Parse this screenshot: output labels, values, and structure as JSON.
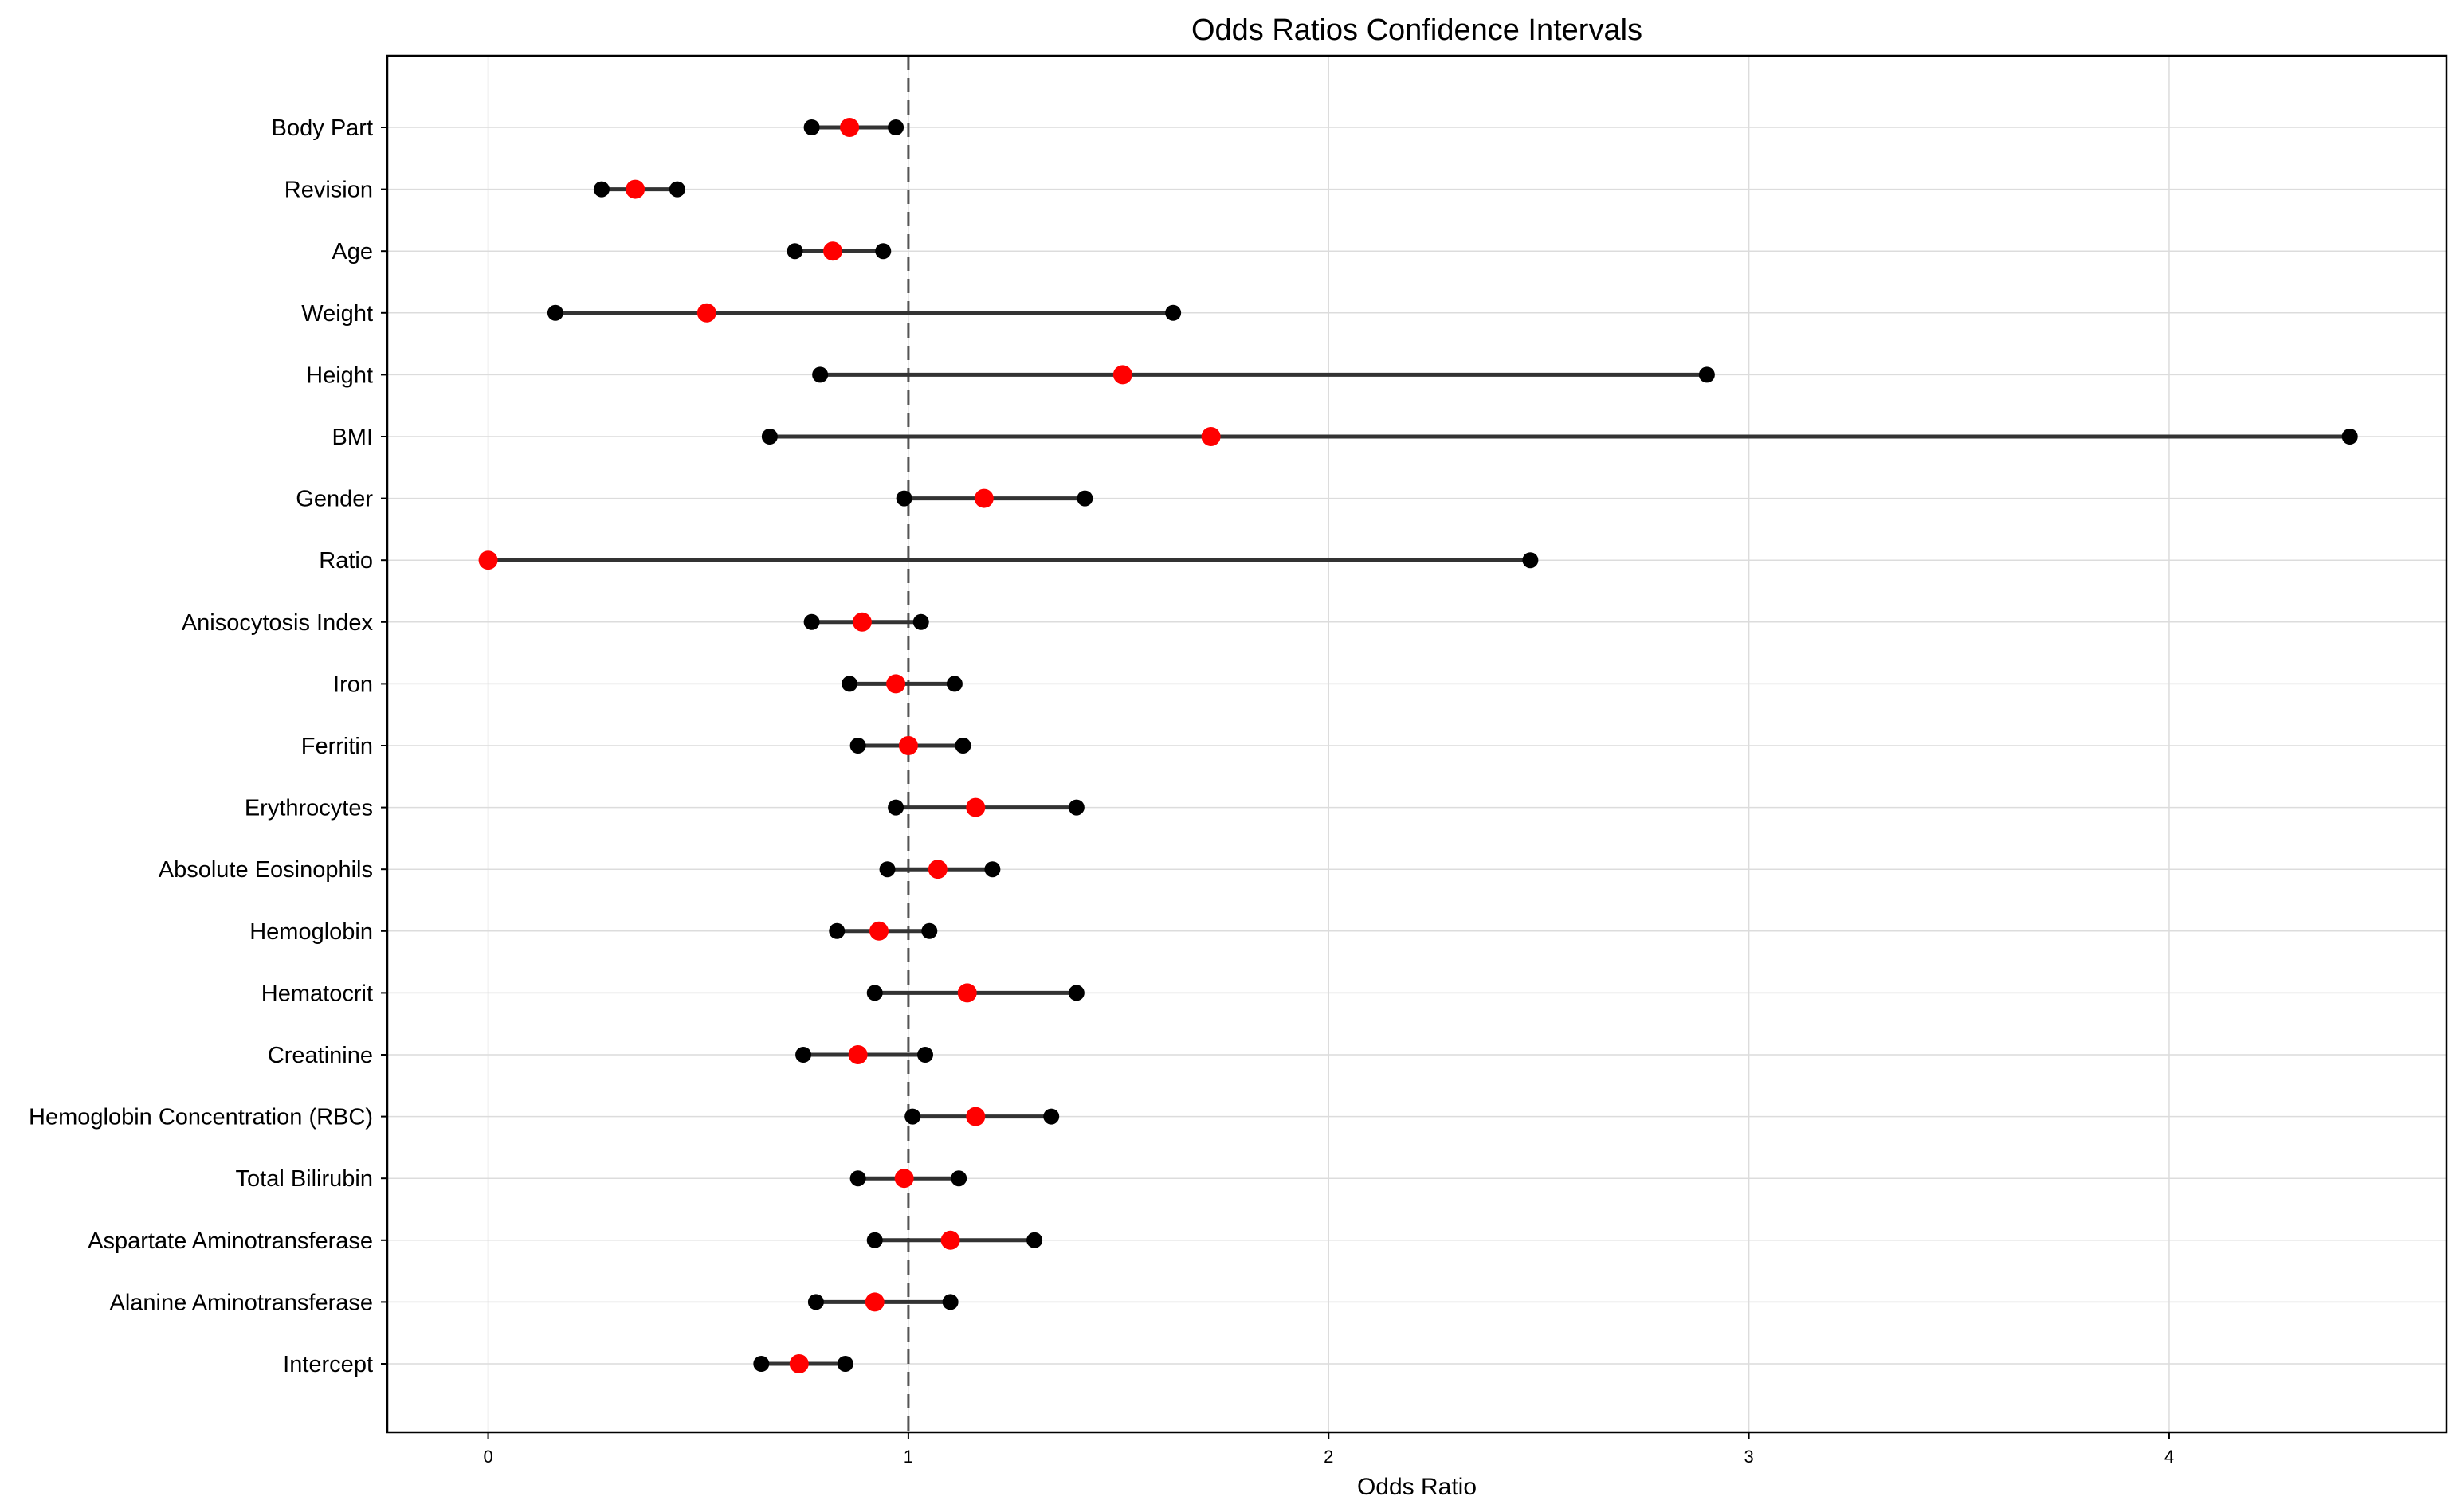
{
  "chart_data": {
    "type": "scatter",
    "title": "Odds Ratios Confidence Intervals",
    "xlabel": "Odds Ratio",
    "ylabel": "",
    "xlim": [
      -0.24,
      4.66
    ],
    "xticks": [
      0,
      1,
      2,
      3,
      4
    ],
    "reference_line": 1,
    "grid": true,
    "colors": {
      "estimate": "#ff0000",
      "interval": "#333333",
      "interval_end": "#000000",
      "reference": "#555555"
    },
    "rows": [
      {
        "label": "Body Part",
        "lower": 0.77,
        "estimate": 0.86,
        "upper": 0.97
      },
      {
        "label": "Revision",
        "lower": 0.27,
        "estimate": 0.35,
        "upper": 0.45
      },
      {
        "label": "Age",
        "lower": 0.73,
        "estimate": 0.82,
        "upper": 0.94
      },
      {
        "label": "Weight",
        "lower": 0.16,
        "estimate": 0.52,
        "upper": 1.63
      },
      {
        "label": "Height",
        "lower": 0.79,
        "estimate": 1.51,
        "upper": 2.9
      },
      {
        "label": "BMI",
        "lower": 0.67,
        "estimate": 1.72,
        "upper": 4.43
      },
      {
        "label": "Gender",
        "lower": 0.99,
        "estimate": 1.18,
        "upper": 1.42
      },
      {
        "label": "Ratio",
        "lower": 0.0,
        "estimate": 0.0,
        "upper": 2.48
      },
      {
        "label": "Anisocytosis Index",
        "lower": 0.77,
        "estimate": 0.89,
        "upper": 1.03
      },
      {
        "label": "Iron",
        "lower": 0.86,
        "estimate": 0.97,
        "upper": 1.11
      },
      {
        "label": "Ferritin",
        "lower": 0.88,
        "estimate": 1.0,
        "upper": 1.13
      },
      {
        "label": "Erythrocytes",
        "lower": 0.97,
        "estimate": 1.16,
        "upper": 1.4
      },
      {
        "label": "Absolute Eosinophils",
        "lower": 0.95,
        "estimate": 1.07,
        "upper": 1.2
      },
      {
        "label": "Hemoglobin",
        "lower": 0.83,
        "estimate": 0.93,
        "upper": 1.05
      },
      {
        "label": "Hematocrit",
        "lower": 0.92,
        "estimate": 1.14,
        "upper": 1.4
      },
      {
        "label": "Creatinine",
        "lower": 0.75,
        "estimate": 0.88,
        "upper": 1.04
      },
      {
        "label": "Hemoglobin Concentration (RBC)",
        "lower": 1.01,
        "estimate": 1.16,
        "upper": 1.34
      },
      {
        "label": "Total Bilirubin",
        "lower": 0.88,
        "estimate": 0.99,
        "upper": 1.12
      },
      {
        "label": "Aspartate Aminotransferase",
        "lower": 0.92,
        "estimate": 1.1,
        "upper": 1.3
      },
      {
        "label": "Alanine Aminotransferase",
        "lower": 0.78,
        "estimate": 0.92,
        "upper": 1.1
      },
      {
        "label": "Intercept",
        "lower": 0.65,
        "estimate": 0.74,
        "upper": 0.85
      }
    ]
  }
}
